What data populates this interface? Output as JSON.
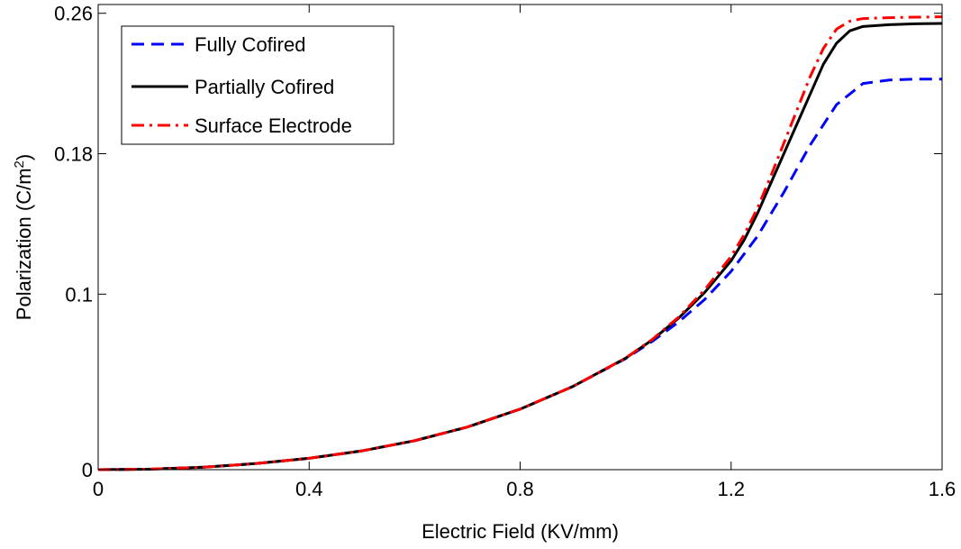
{
  "chart_data": {
    "type": "line",
    "title": "",
    "xlabel": "Electric Field (KV/mm)",
    "ylabel_main": "Polarization (C/m",
    "ylabel_sup": "2",
    "ylabel_end": ")",
    "xlim": [
      0,
      1.6
    ],
    "ylim": [
      0,
      0.265
    ],
    "xticks": [
      0,
      0.4,
      0.8,
      1.2,
      1.6
    ],
    "xtick_labels": [
      "0",
      "0.4",
      "0.8",
      "1.2",
      "1.6"
    ],
    "yticks": [
      0,
      0.1,
      0.18,
      0.26
    ],
    "ytick_labels": [
      "0",
      "0.1",
      "0.18",
      "0.26"
    ],
    "grid": false,
    "legend_position": "top-left",
    "series": [
      {
        "name": "Fully Cofired",
        "color": "#0000ff",
        "style": "dashed",
        "x": [
          0,
          0.1,
          0.2,
          0.3,
          0.4,
          0.5,
          0.6,
          0.7,
          0.8,
          0.9,
          1.0,
          1.05,
          1.1,
          1.15,
          1.2,
          1.25,
          1.3,
          1.35,
          1.4,
          1.45,
          1.5,
          1.55,
          1.6
        ],
        "y": [
          0,
          0.0003,
          0.0014,
          0.0035,
          0.0065,
          0.0107,
          0.0165,
          0.0243,
          0.0345,
          0.0474,
          0.0633,
          0.073,
          0.084,
          0.097,
          0.113,
          0.133,
          0.158,
          0.185,
          0.208,
          0.22,
          0.222,
          0.2225,
          0.2225
        ]
      },
      {
        "name": "Partially Cofired",
        "color": "#000000",
        "style": "solid",
        "x": [
          0,
          0.1,
          0.2,
          0.3,
          0.4,
          0.5,
          0.6,
          0.7,
          0.8,
          0.9,
          1.0,
          1.05,
          1.1,
          1.15,
          1.2,
          1.225,
          1.25,
          1.275,
          1.3,
          1.325,
          1.35,
          1.375,
          1.4,
          1.425,
          1.45,
          1.5,
          1.55,
          1.6
        ],
        "y": [
          0,
          0.0003,
          0.0014,
          0.0035,
          0.0065,
          0.0107,
          0.0165,
          0.0243,
          0.0345,
          0.0474,
          0.0635,
          0.0738,
          0.0862,
          0.101,
          0.119,
          0.131,
          0.146,
          0.163,
          0.18,
          0.197,
          0.214,
          0.231,
          0.243,
          0.25,
          0.2525,
          0.2535,
          0.254,
          0.2542
        ]
      },
      {
        "name": "Surface Electrode",
        "color": "#ff0000",
        "style": "dashdot",
        "x": [
          0,
          0.1,
          0.2,
          0.3,
          0.4,
          0.5,
          0.6,
          0.7,
          0.8,
          0.9,
          1.0,
          1.05,
          1.1,
          1.15,
          1.2,
          1.225,
          1.25,
          1.275,
          1.3,
          1.325,
          1.35,
          1.375,
          1.4,
          1.425,
          1.45,
          1.5,
          1.55,
          1.6
        ],
        "y": [
          0,
          0.0003,
          0.0014,
          0.0035,
          0.0065,
          0.0107,
          0.0165,
          0.0243,
          0.0345,
          0.0474,
          0.0636,
          0.0741,
          0.0868,
          0.1025,
          0.1215,
          0.134,
          0.149,
          0.167,
          0.186,
          0.205,
          0.224,
          0.24,
          0.251,
          0.2555,
          0.257,
          0.2575,
          0.2578,
          0.258
        ]
      }
    ]
  }
}
